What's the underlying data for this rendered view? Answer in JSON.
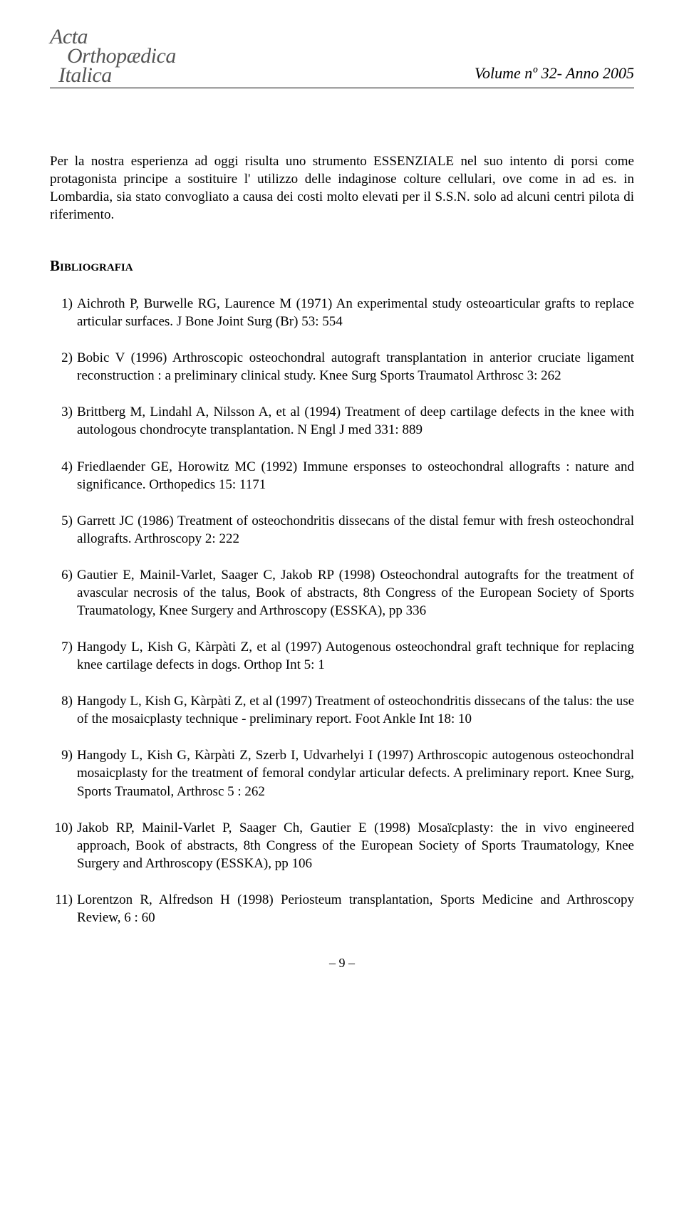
{
  "header": {
    "logo_line1": "Acta",
    "logo_line2": "Orthopædica",
    "logo_line3": "Italica",
    "volume": "Volume nº 32- Anno 2005"
  },
  "paragraph": "Per la nostra esperienza ad oggi risulta uno strumento ESSENZIALE nel suo intento di porsi come protagonista principe a sostituire l' utilizzo delle indaginose colture cellulari, ove come in ad es. in Lombardia, sia stato convogliato a causa dei costi molto elevati per il S.S.N. solo ad alcuni centri pilota di riferimento.",
  "section_title": "Bibliografia",
  "references": [
    "Aichroth P, Burwelle RG, Laurence M (1971) An experimental study osteoarticular grafts to replace articular surfaces. J Bone Joint Surg (Br) 53: 554",
    "Bobic V (1996) Arthroscopic osteochondral autograft transplantation in anterior cruciate ligament reconstruction : a preliminary clinical study. Knee Surg Sports Traumatol Arthrosc 3: 262",
    "Brittberg M, Lindahl A, Nilsson A, et al (1994) Treatment of deep cartilage defects in the knee with autologous chondrocyte transplantation. N Engl J med 331: 889",
    "Friedlaender GE, Horowitz MC (1992) Immune ersponses to osteochondral allografts : nature and significance. Orthopedics 15: 1171",
    "Garrett JC (1986) Treatment of osteochondritis dissecans of the distal femur with fresh osteochondral allografts. Arthroscopy 2: 222",
    "Gautier E, Mainil-Varlet, Saager C, Jakob RP (1998) Osteochondral autografts for the treatment of avascular necrosis of the talus, Book of abstracts, 8th Congress of the European Society of Sports Traumatology, Knee Surgery and Arthroscopy (ESSKA), pp 336",
    "Hangody L, Kish G, Kàrpàti Z, et al (1997) Autogenous osteochondral graft technique for replacing knee cartilage defects in dogs. Orthop Int 5: 1",
    "Hangody L, Kish G, Kàrpàti Z, et al (1997) Treatment of osteochondritis dissecans of the talus: the use of the mosaicplasty technique - preliminary report. Foot Ankle Int 18: 10",
    "Hangody L, Kish G, Kàrpàti Z, Szerb I, Udvarhelyi I (1997) Arthroscopic autogenous osteochondral mosaicplasty for the treatment of femoral condylar articular defects. A preliminary report. Knee Surg, Sports Traumatol, Arthrosc 5 : 262",
    "Jakob RP, Mainil-Varlet P, Saager Ch, Gautier E (1998) Mosaïcplasty: the in vivo engineered approach, Book of abstracts, 8th Congress of the European Society of Sports Traumatology, Knee Surgery and Arthroscopy (ESSKA), pp 106",
    "Lorentzon R, Alfredson H (1998) Periosteum transplantation, Sports Medicine and Arthroscopy Review, 6 : 60"
  ],
  "page_number": "– 9 –"
}
